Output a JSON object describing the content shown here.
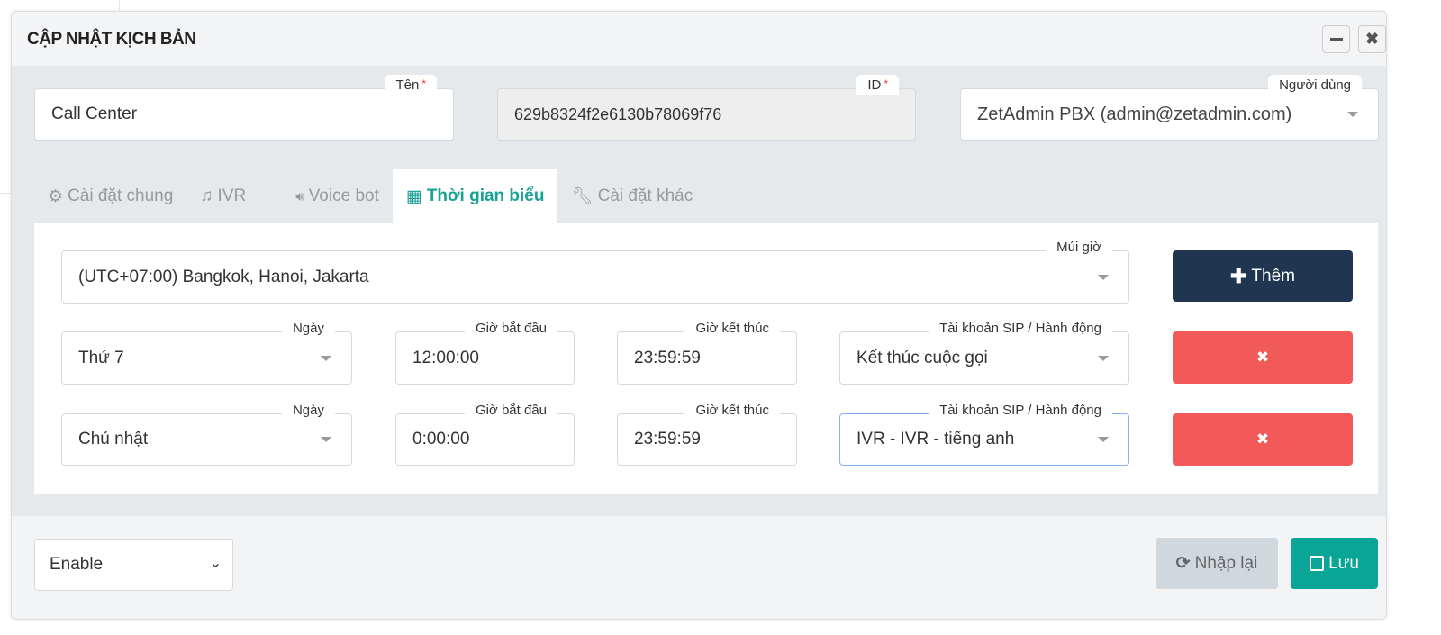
{
  "modal": {
    "title": "CẬP NHẬT KỊCH BẢN",
    "minimize_icon": "minus-icon",
    "close_icon": "times-icon"
  },
  "fields": {
    "name": {
      "label": "Tên",
      "required": "*",
      "value": "Call Center"
    },
    "id": {
      "label": "ID",
      "required": "*",
      "value": "629b8324f2e6130b78069f76"
    },
    "user": {
      "label": "Người dùng",
      "value": "ZetAdmin PBX (admin@zetadmin.com)"
    }
  },
  "tabs": [
    {
      "label": "Cài đặt chung",
      "icon": "cogs-icon"
    },
    {
      "label": "IVR",
      "icon": "music-icon"
    },
    {
      "label": "Voice bot",
      "icon": "volume-icon"
    },
    {
      "label": "Thời gian biểu",
      "icon": "calendar-icon",
      "active": true
    },
    {
      "label": "Cài đặt khác",
      "icon": "wrench-icon"
    }
  ],
  "schedule": {
    "timezone": {
      "label": "Múi giờ",
      "value": "(UTC+07:00) Bangkok, Hanoi, Jakarta"
    },
    "add_button": "Thêm",
    "rows": [
      {
        "day_label": "Ngày",
        "day": "Thứ 7",
        "start_label": "Giờ bắt đầu",
        "start": "12:00:00",
        "end_label": "Giờ kết thúc",
        "end": "23:59:59",
        "action_label": "Tài khoản SIP / Hành động",
        "action": "Kết thúc cuộc gọi"
      },
      {
        "day_label": "Ngày",
        "day": "Chủ nhật",
        "start_label": "Giờ bắt đầu",
        "start": "0:00:00",
        "end_label": "Giờ kết thúc",
        "end": "23:59:59",
        "action_label": "Tài khoản SIP / Hành động",
        "action": "IVR - IVR - tiếng anh"
      }
    ]
  },
  "footer": {
    "status": "Enable",
    "reset_button": "Nhập lại",
    "save_button": "Lưu"
  },
  "colors": {
    "primary_dark": "#1f3550",
    "danger": "#f25a5a",
    "success": "#0aa596",
    "accent_tab": "#17a295"
  }
}
